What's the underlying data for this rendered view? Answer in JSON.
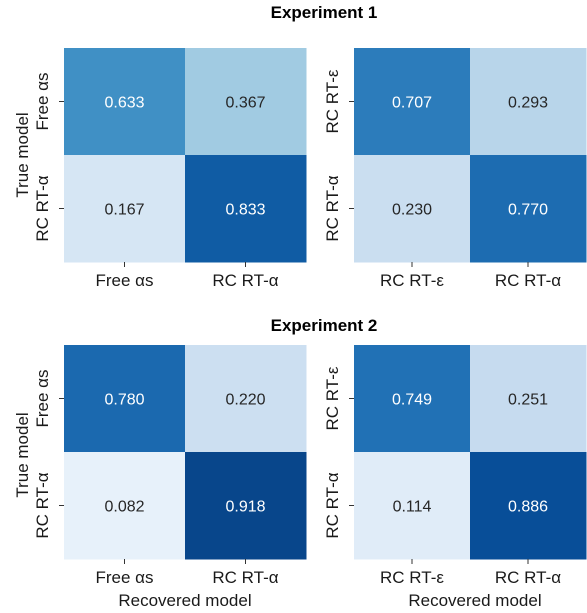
{
  "figure": {
    "xlabel": "Recovered model",
    "ylabel": "True model"
  },
  "chart_data": [
    {
      "type": "heatmap",
      "title": "Experiment 1",
      "x_categories": [
        "Free αs",
        "RC RT-α"
      ],
      "y_categories": [
        "Free αs",
        "RC RT-α"
      ],
      "values": [
        [
          0.633,
          0.367
        ],
        [
          0.167,
          0.833
        ]
      ],
      "value_labels": [
        [
          "0.633",
          "0.367"
        ],
        [
          "0.167",
          "0.833"
        ]
      ],
      "colormap": "Blues",
      "vmin": 0,
      "vmax": 1
    },
    {
      "type": "heatmap",
      "title": "",
      "x_categories": [
        "RC RT-ε",
        "RC RT-α"
      ],
      "y_categories": [
        "RC RT-ε",
        "RC RT-α"
      ],
      "values": [
        [
          0.707,
          0.293
        ],
        [
          0.23,
          0.77
        ]
      ],
      "value_labels": [
        [
          "0.707",
          "0.293"
        ],
        [
          "0.230",
          "0.770"
        ]
      ],
      "colormap": "Blues",
      "vmin": 0,
      "vmax": 1
    },
    {
      "type": "heatmap",
      "title": "Experiment 2",
      "x_categories": [
        "Free αs",
        "RC RT-α"
      ],
      "y_categories": [
        "Free αs",
        "RC RT-α"
      ],
      "values": [
        [
          0.78,
          0.22
        ],
        [
          0.082,
          0.918
        ]
      ],
      "value_labels": [
        [
          "0.780",
          "0.220"
        ],
        [
          "0.082",
          "0.918"
        ]
      ],
      "colormap": "Blues",
      "vmin": 0,
      "vmax": 1
    },
    {
      "type": "heatmap",
      "title": "",
      "x_categories": [
        "RC RT-ε",
        "RC RT-α"
      ],
      "y_categories": [
        "RC RT-ε",
        "RC RT-α"
      ],
      "values": [
        [
          0.749,
          0.251
        ],
        [
          0.114,
          0.886
        ]
      ],
      "value_labels": [
        [
          "0.749",
          "0.251"
        ],
        [
          "0.114",
          "0.886"
        ]
      ],
      "colormap": "Blues",
      "vmin": 0,
      "vmax": 1
    }
  ]
}
